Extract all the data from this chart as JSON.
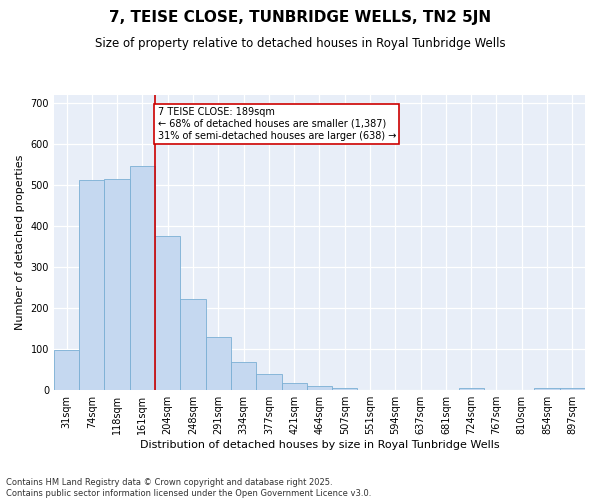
{
  "title": "7, TEISE CLOSE, TUNBRIDGE WELLS, TN2 5JN",
  "subtitle": "Size of property relative to detached houses in Royal Tunbridge Wells",
  "xlabel": "Distribution of detached houses by size in Royal Tunbridge Wells",
  "ylabel": "Number of detached properties",
  "categories": [
    "31sqm",
    "74sqm",
    "118sqm",
    "161sqm",
    "204sqm",
    "248sqm",
    "291sqm",
    "334sqm",
    "377sqm",
    "421sqm",
    "464sqm",
    "507sqm",
    "551sqm",
    "594sqm",
    "637sqm",
    "681sqm",
    "724sqm",
    "767sqm",
    "810sqm",
    "854sqm",
    "897sqm"
  ],
  "bar_heights": [
    97,
    512,
    515,
    548,
    375,
    222,
    130,
    68,
    40,
    18,
    10,
    5,
    0,
    0,
    0,
    0,
    5,
    0,
    0,
    5,
    5
  ],
  "bar_color": "#c5d8f0",
  "bar_edge_color": "#7aafd4",
  "vline_color": "#cc0000",
  "vline_x_idx": 3.5,
  "annotation_text": "7 TEISE CLOSE: 189sqm\n← 68% of detached houses are smaller (1,387)\n31% of semi-detached houses are larger (638) →",
  "annotation_box_color": "white",
  "annotation_box_edge": "#cc0000",
  "ylim": [
    0,
    720
  ],
  "yticks": [
    0,
    100,
    200,
    300,
    400,
    500,
    600,
    700
  ],
  "background_color": "#e8eef8",
  "footer": "Contains HM Land Registry data © Crown copyright and database right 2025.\nContains public sector information licensed under the Open Government Licence v3.0.",
  "title_fontsize": 11,
  "subtitle_fontsize": 8.5,
  "label_fontsize": 8,
  "tick_fontsize": 7,
  "footer_fontsize": 6
}
